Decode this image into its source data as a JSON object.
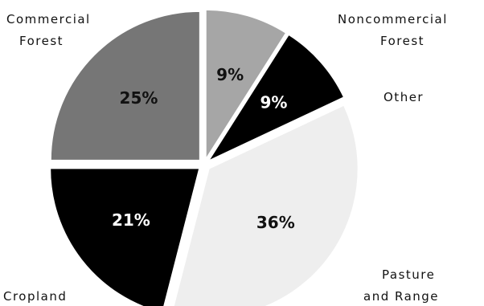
{
  "chart_data": {
    "type": "pie",
    "slices": [
      {
        "category": "Noncommercial Forest",
        "label_lines": [
          "Noncommercial",
          "Forest"
        ],
        "value": 9,
        "value_label": "9%",
        "color": "#a6a6a6",
        "text_color": "#111111"
      },
      {
        "category": "Other",
        "label_lines": [
          "Other"
        ],
        "value": 9,
        "value_label": "9%",
        "color": "#000000",
        "text_color": "#ffffff"
      },
      {
        "category": "Pasture and Range",
        "label_lines": [
          "Pasture",
          "and Range"
        ],
        "value": 36,
        "value_label": "36%",
        "color": "#eeeeee",
        "text_color": "#111111"
      },
      {
        "category": "Cropland",
        "label_lines": [
          "Cropland"
        ],
        "value": 21,
        "value_label": "21%",
        "color": "#000000",
        "text_color": "#ffffff"
      },
      {
        "category": "Commercial Forest",
        "label_lines": [
          "Commercial",
          "Forest"
        ],
        "value": 25,
        "value_label": "25%",
        "color": "#767676",
        "text_color": "#111111"
      }
    ]
  }
}
